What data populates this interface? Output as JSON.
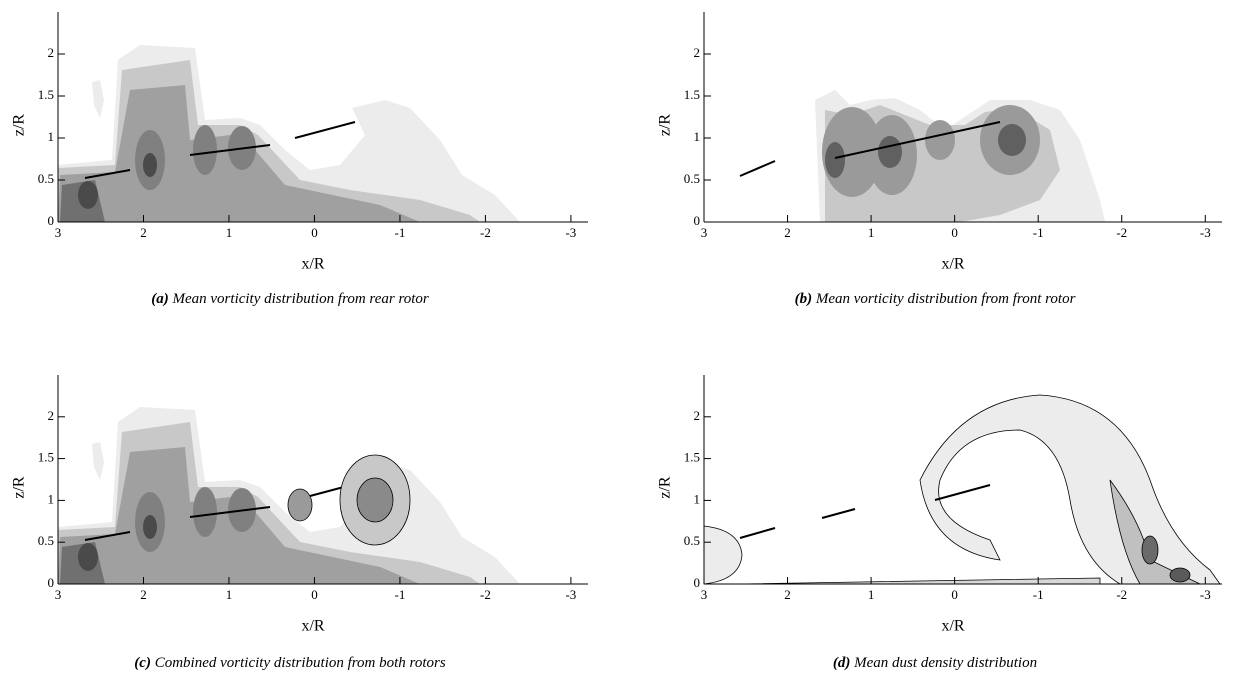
{
  "chart_data": [
    {
      "type": "contour",
      "label": "(a)",
      "caption": "Mean vorticity distribution from rear rotor",
      "x_label": "x/R",
      "y_label": "z/R",
      "xlim": [
        3,
        -3.2
      ],
      "ylim": [
        0,
        2.5
      ],
      "xticks": [
        3,
        2,
        1,
        0,
        -1,
        -2,
        -3
      ],
      "yticks": [
        0,
        0.5,
        1,
        1.5,
        2
      ]
    },
    {
      "type": "contour",
      "label": "(b)",
      "caption": "Mean vorticity distribution from front rotor",
      "x_label": "x/R",
      "y_label": "z/R",
      "xlim": [
        3,
        -3.2
      ],
      "ylim": [
        0,
        2.5
      ],
      "xticks": [
        3,
        2,
        1,
        0,
        -1,
        -2,
        -3
      ],
      "yticks": [
        0,
        0.5,
        1,
        1.5,
        2
      ]
    },
    {
      "type": "contour",
      "label": "(c)",
      "caption": "Combined vorticity distribution from both rotors",
      "x_label": "x/R",
      "y_label": "z/R",
      "xlim": [
        3,
        -3.2
      ],
      "ylim": [
        0,
        2.5
      ],
      "xticks": [
        3,
        2,
        1,
        0,
        -1,
        -2,
        -3
      ],
      "yticks": [
        0,
        0.5,
        1,
        1.5,
        2
      ]
    },
    {
      "type": "contour",
      "label": "(d)",
      "caption": "Mean dust density distribution",
      "x_label": "x/R",
      "y_label": "z/R",
      "xlim": [
        3,
        -3.2
      ],
      "ylim": [
        0,
        2.5
      ],
      "xticks": [
        3,
        2,
        1,
        0,
        -1,
        -2,
        -3
      ],
      "yticks": [
        0,
        0.5,
        1,
        1.5,
        2
      ]
    }
  ]
}
